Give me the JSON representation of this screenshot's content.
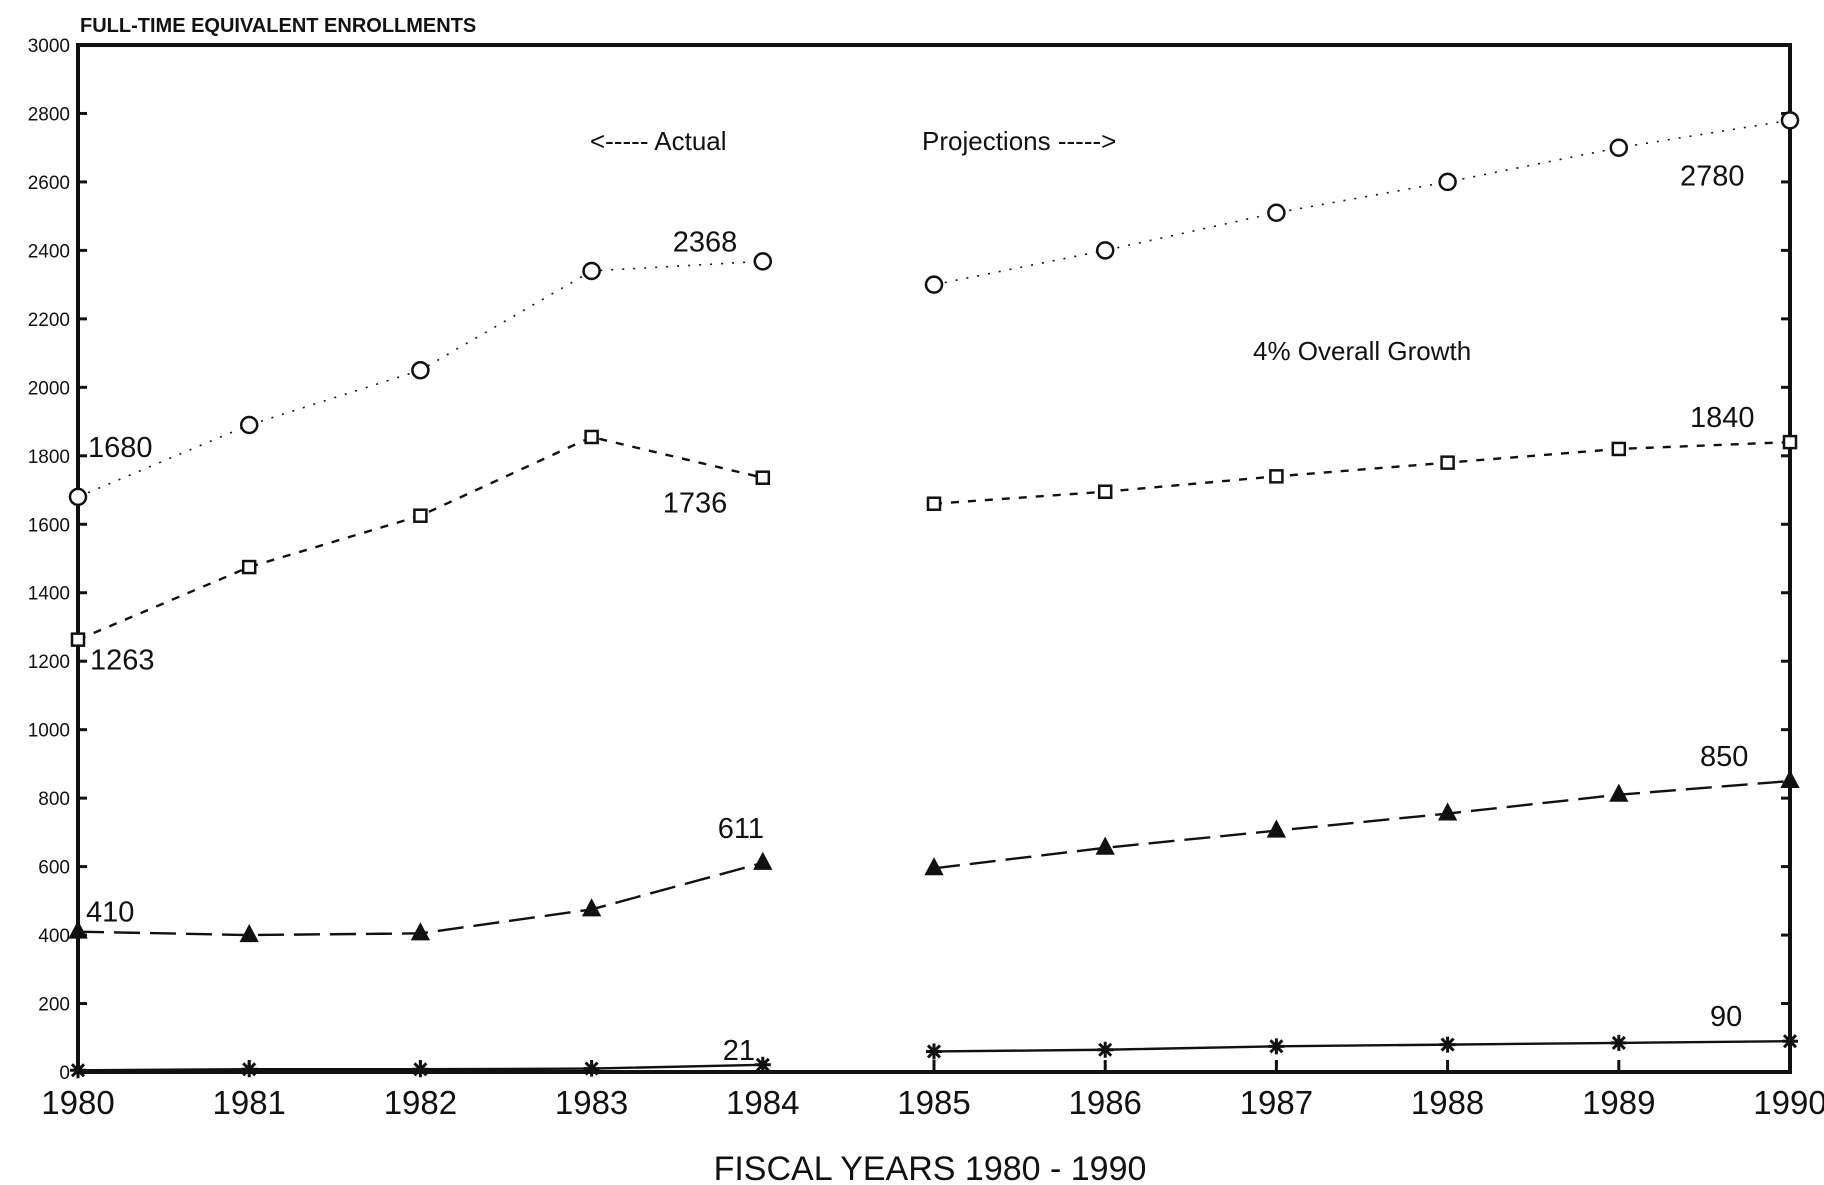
{
  "chart_data": {
    "type": "line",
    "title": "",
    "ylabel": "FULL-TIME EQUIVALENT ENROLLMENTS",
    "xlabel": "FISCAL YEARS 1980 - 1990",
    "x": [
      1980,
      1981,
      1982,
      1983,
      1984,
      1985,
      1986,
      1987,
      1988,
      1989,
      1990
    ],
    "xlim": [
      1980,
      1990
    ],
    "ylim": [
      0,
      3000
    ],
    "yticks": [
      0,
      200,
      400,
      600,
      800,
      1000,
      1200,
      1400,
      1600,
      1800,
      2000,
      2200,
      2400,
      2600,
      2800,
      3000
    ],
    "grid": false,
    "legend": "none",
    "annotations": {
      "actual": "<----- Actual",
      "projections": "Projections ----->",
      "growth": "4% Overall Growth"
    },
    "series": [
      {
        "marker": "circle",
        "line": "dotted",
        "values": [
          1680,
          1890,
          2050,
          2340,
          2368,
          2300,
          2400,
          2510,
          2600,
          2700,
          2780
        ],
        "labels": [
          {
            "x": 1980,
            "y": 1680,
            "text": "1680"
          },
          {
            "x": 1984,
            "y": 2368,
            "text": "2368"
          },
          {
            "x": 1990,
            "y": 2780,
            "text": "2780"
          }
        ]
      },
      {
        "marker": "square",
        "line": "short-dash",
        "values": [
          1263,
          1475,
          1625,
          1855,
          1736,
          1660,
          1695,
          1740,
          1780,
          1820,
          1840
        ],
        "labels": [
          {
            "x": 1980,
            "y": 1263,
            "text": "1263"
          },
          {
            "x": 1984,
            "y": 1736,
            "text": "1736"
          },
          {
            "x": 1990,
            "y": 1840,
            "text": "1840"
          }
        ]
      },
      {
        "marker": "triangle",
        "line": "long-dash",
        "values": [
          410,
          400,
          405,
          475,
          611,
          595,
          655,
          705,
          755,
          810,
          850
        ],
        "labels": [
          {
            "x": 1980,
            "y": 410,
            "text": "410"
          },
          {
            "x": 1984,
            "y": 611,
            "text": "611"
          },
          {
            "x": 1990,
            "y": 850,
            "text": "850"
          }
        ]
      },
      {
        "marker": "star",
        "line": "solid",
        "values": [
          5,
          8,
          8,
          10,
          21,
          60,
          65,
          75,
          80,
          85,
          90
        ],
        "labels": [
          {
            "x": 1984,
            "y": 21,
            "text": "21"
          },
          {
            "x": 1990,
            "y": 90,
            "text": "90"
          }
        ]
      }
    ]
  }
}
